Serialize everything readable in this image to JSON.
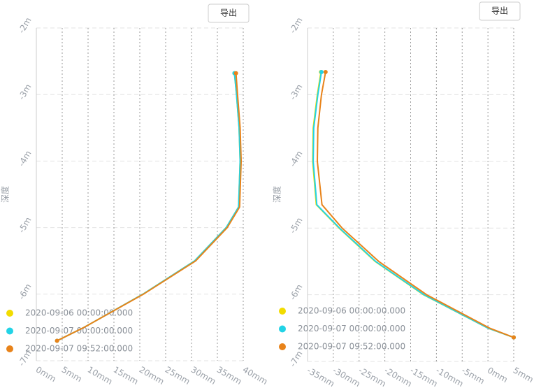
{
  "chart_data": [
    {
      "type": "line",
      "button": "导出",
      "ylabel": "深度",
      "depths": [
        -2.68,
        -3.0,
        -3.5,
        -4.0,
        -4.69,
        -5.0,
        -5.5,
        -6.0,
        -6.5,
        -6.7
      ],
      "series": [
        {
          "name": "2020-09-06 00:00:00.000",
          "color": "#f2dc00",
          "values": [
            38.3,
            38.7,
            39.2,
            39.4,
            39.1,
            36.7,
            30.6,
            20.6,
            9.2,
            4
          ]
        },
        {
          "name": "2020-09-07 00:00:00.000",
          "color": "#22d3e6",
          "values": [
            38.3,
            38.7,
            39.2,
            39.4,
            39.1,
            36.7,
            30.6,
            20.6,
            9.2,
            4
          ]
        },
        {
          "name": "2020-09-07 09:52:00.000",
          "color": "#e8831a",
          "values": [
            38.6,
            38.9,
            39.4,
            39.6,
            39.3,
            36.9,
            30.8,
            20.7,
            9.2,
            4
          ]
        }
      ],
      "xlim": [
        0,
        40
      ],
      "xticks": [
        {
          "value": 0,
          "label": "0mm"
        },
        {
          "value": 5,
          "label": "5mm"
        },
        {
          "value": 10,
          "label": "10mm"
        },
        {
          "value": 15,
          "label": "15mm"
        },
        {
          "value": 20,
          "label": "20mm"
        },
        {
          "value": 25,
          "label": "25mm"
        },
        {
          "value": 30,
          "label": "30mm"
        },
        {
          "value": 35,
          "label": "35mm"
        },
        {
          "value": 40,
          "label": "40mm"
        }
      ],
      "ylim": [
        -7,
        -2
      ],
      "yticks": [
        {
          "value": -2,
          "label": "-2m"
        },
        {
          "value": -3,
          "label": "-3m"
        },
        {
          "value": -4,
          "label": "-4m"
        },
        {
          "value": -5,
          "label": "-5m"
        },
        {
          "value": -6,
          "label": "-6m"
        },
        {
          "value": -7,
          "label": "-7m"
        }
      ],
      "grid": true,
      "legend": "bottom-left"
    },
    {
      "type": "line",
      "button": "导出",
      "ylabel": "深度",
      "depths": [
        -2.66,
        -3.0,
        -3.5,
        -4.0,
        -4.65,
        -5.0,
        -5.5,
        -6.0,
        -6.5,
        -6.64
      ],
      "series": [
        {
          "name": "2020-09-06 00:00:00.000",
          "color": "#f2dc00",
          "values": [
            -32.4,
            -33.1,
            -33.9,
            -34.0,
            -33.3,
            -28.9,
            -21.9,
            -12.5,
            0.0,
            5
          ]
        },
        {
          "name": "2020-09-07 00:00:00.000",
          "color": "#22d3e6",
          "values": [
            -32.3,
            -33.0,
            -33.8,
            -33.9,
            -33.2,
            -28.8,
            -21.8,
            -12.4,
            0.0,
            5
          ]
        },
        {
          "name": "2020-09-07 09:52:00.000",
          "color": "#e8831a",
          "values": [
            -31.5,
            -32.3,
            -33.0,
            -33.1,
            -32.2,
            -28.3,
            -21.2,
            -11.9,
            0.3,
            5
          ]
        }
      ],
      "xlim": [
        -35,
        5
      ],
      "xticks": [
        {
          "value": -35,
          "label": "-35mm"
        },
        {
          "value": -30,
          "label": "-30mm"
        },
        {
          "value": -25,
          "label": "-25mm"
        },
        {
          "value": -20,
          "label": "-20mm"
        },
        {
          "value": -15,
          "label": "-15mm"
        },
        {
          "value": -10,
          "label": "-10mm"
        },
        {
          "value": -5,
          "label": "-5mm"
        },
        {
          "value": 0,
          "label": "0mm"
        },
        {
          "value": 5,
          "label": "5mm"
        }
      ],
      "ylim": [
        -7,
        -2
      ],
      "yticks": [
        {
          "value": -2,
          "label": "-2m"
        },
        {
          "value": -3,
          "label": "-3m"
        },
        {
          "value": -4,
          "label": "-4m"
        },
        {
          "value": -5,
          "label": "-5m"
        },
        {
          "value": -6,
          "label": "-6m"
        },
        {
          "value": -7,
          "label": "-7m"
        }
      ],
      "grid": true,
      "legend": "bottom-left"
    }
  ]
}
